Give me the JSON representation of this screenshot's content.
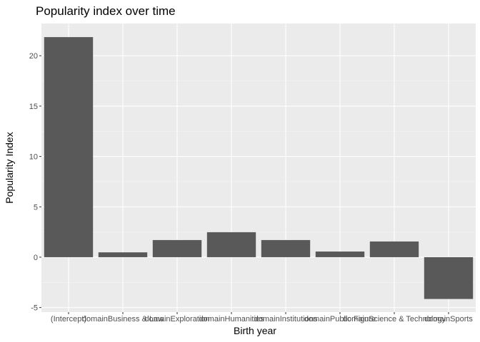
{
  "chart_data": {
    "type": "bar",
    "title": "Popularity index over time",
    "xlabel": "Birth year",
    "ylabel": "Popularity Index",
    "categories": [
      "(Intercept)",
      "domainBusiness & Law",
      "domainExploration",
      "domainHumanities",
      "domainInstitutions",
      "domainPublic Figure",
      "domainScience & Technology",
      "domainSports"
    ],
    "values": [
      21.85,
      0.48,
      1.7,
      2.48,
      1.7,
      0.56,
      1.56,
      -4.15
    ],
    "ylim": [
      -5.45,
      23.2
    ],
    "yticks": [
      -5,
      0,
      5,
      10,
      15,
      20
    ],
    "grid": true,
    "colors": {
      "panel": "#ebebeb",
      "grid_major": "#ffffff",
      "grid_minor": "#f5f5f5",
      "bar": "#595959",
      "tick_text": "#4d4d4d"
    }
  }
}
